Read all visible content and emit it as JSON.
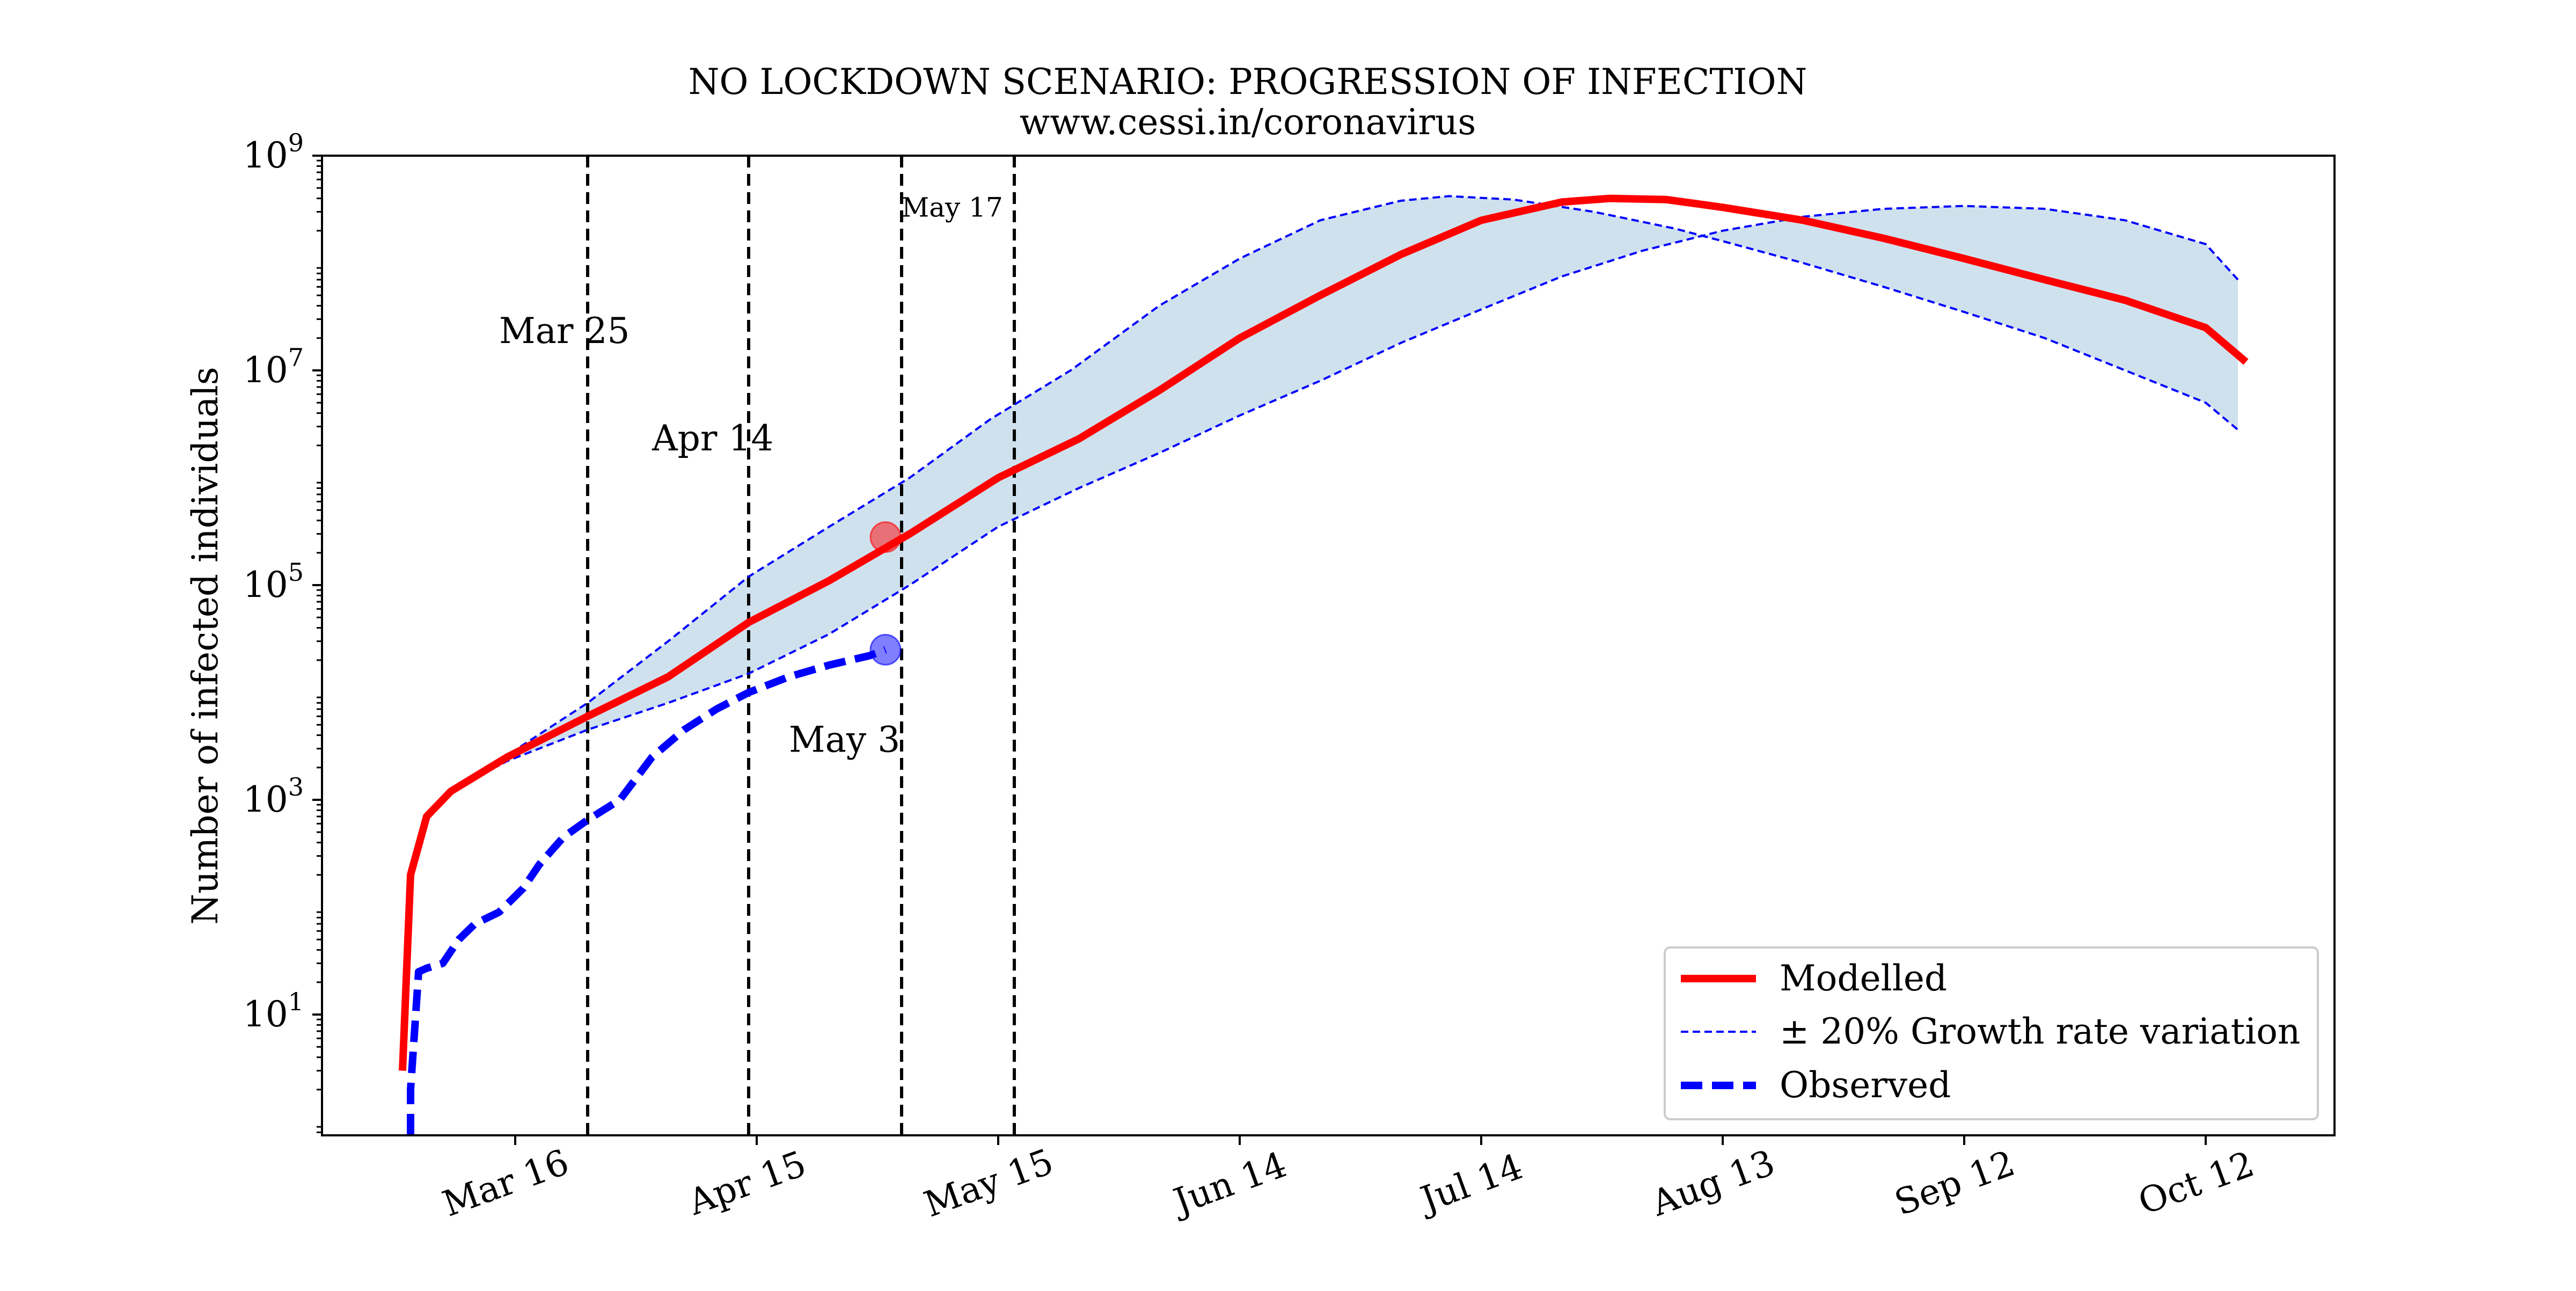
{
  "chart_data": {
    "type": "line",
    "title": "NO LOCKDOWN SCENARIO: PROGRESSION OF INFECTION",
    "subtitle": "www.cessi.in/coronavirus",
    "xlabel": "",
    "ylabel": "Number of infected individuals",
    "yscale": "log",
    "ylim": [
      0.75,
      1000000000
    ],
    "xlim": [
      "2020-02-21",
      "2020-10-28"
    ],
    "x_ticks": [
      "Mar 16",
      "Apr 15",
      "May 15",
      "Jun 14",
      "Jul 14",
      "Aug 13",
      "Sep 12",
      "Oct 12"
    ],
    "x_tick_dates": [
      "2020-03-16",
      "2020-04-15",
      "2020-05-15",
      "2020-06-14",
      "2020-07-14",
      "2020-08-13",
      "2020-09-12",
      "2020-10-12"
    ],
    "y_ticks": [
      {
        "value": 10,
        "base": "10",
        "exp": "1"
      },
      {
        "value": 1000,
        "base": "10",
        "exp": "3"
      },
      {
        "value": 100000,
        "base": "10",
        "exp": "5"
      },
      {
        "value": 10000000,
        "base": "10",
        "exp": "7"
      },
      {
        "value": 1000000000,
        "base": "10",
        "exp": "9"
      }
    ],
    "grid": false,
    "legend_position": "lower-right",
    "vertical_lines": [
      {
        "date": "2020-03-25",
        "label": "Mar 25",
        "label_date": "2020-03-14",
        "label_value": 18000000,
        "size": "normal"
      },
      {
        "date": "2020-04-14",
        "label": "Apr 14",
        "label_date": "2020-04-02",
        "label_value": 1800000,
        "size": "normal"
      },
      {
        "date": "2020-05-03",
        "label": "May 3",
        "label_date": "2020-04-19",
        "label_value": 2800,
        "size": "normal"
      },
      {
        "date": "2020-05-17",
        "label": "May 17",
        "label_date": "2020-05-03",
        "label_value": 270000000,
        "size": "small"
      }
    ],
    "series": [
      {
        "name": "Modelled",
        "color": "#ff0000",
        "style": "solid",
        "points": [
          [
            "2020-03-02",
            3
          ],
          [
            "2020-03-03",
            200
          ],
          [
            "2020-03-05",
            700
          ],
          [
            "2020-03-08",
            1200
          ],
          [
            "2020-03-15",
            2500
          ],
          [
            "2020-03-25",
            6000
          ],
          [
            "2020-04-04",
            14000
          ],
          [
            "2020-04-14",
            45000
          ],
          [
            "2020-04-24",
            110000
          ],
          [
            "2020-05-04",
            300000
          ],
          [
            "2020-05-15",
            1000000
          ],
          [
            "2020-05-25",
            2300000
          ],
          [
            "2020-06-04",
            6500000
          ],
          [
            "2020-06-14",
            20000000
          ],
          [
            "2020-06-24",
            50000000
          ],
          [
            "2020-07-04",
            120000000
          ],
          [
            "2020-07-14",
            250000000
          ],
          [
            "2020-07-24",
            370000000
          ],
          [
            "2020-07-30",
            400000000
          ],
          [
            "2020-08-06",
            390000000
          ],
          [
            "2020-08-13",
            330000000
          ],
          [
            "2020-08-23",
            250000000
          ],
          [
            "2020-09-02",
            170000000
          ],
          [
            "2020-09-12",
            110000000
          ],
          [
            "2020-09-22",
            70000000
          ],
          [
            "2020-10-02",
            45000000
          ],
          [
            "2020-10-12",
            25000000
          ],
          [
            "2020-10-17",
            12000000
          ]
        ]
      },
      {
        "name": "± 20% Growth rate variation",
        "color": "#0000ff",
        "style": "dashed-thin",
        "band_fill": "#d0e1ee",
        "upper": [
          [
            "2020-03-08",
            1200
          ],
          [
            "2020-03-15",
            2600
          ],
          [
            "2020-03-25",
            8000
          ],
          [
            "2020-04-04",
            30000
          ],
          [
            "2020-04-14",
            120000
          ],
          [
            "2020-04-24",
            350000
          ],
          [
            "2020-05-04",
            1000000
          ],
          [
            "2020-05-14",
            3500000
          ],
          [
            "2020-05-24",
            10000000
          ],
          [
            "2020-06-04",
            40000000
          ],
          [
            "2020-06-14",
            110000000
          ],
          [
            "2020-06-24",
            250000000
          ],
          [
            "2020-07-04",
            380000000
          ],
          [
            "2020-07-10",
            420000000
          ],
          [
            "2020-07-18",
            390000000
          ],
          [
            "2020-07-28",
            300000000
          ],
          [
            "2020-08-07",
            210000000
          ],
          [
            "2020-08-13",
            160000000
          ],
          [
            "2020-08-23",
            100000000
          ],
          [
            "2020-09-02",
            60000000
          ],
          [
            "2020-09-12",
            35000000
          ],
          [
            "2020-09-22",
            20000000
          ],
          [
            "2020-10-02",
            10000000
          ],
          [
            "2020-10-12",
            5000000
          ],
          [
            "2020-10-16",
            2800000
          ]
        ],
        "lower": [
          [
            "2020-03-08",
            1200
          ],
          [
            "2020-03-15",
            2300
          ],
          [
            "2020-03-25",
            4500
          ],
          [
            "2020-04-04",
            8000
          ],
          [
            "2020-04-14",
            15000
          ],
          [
            "2020-04-24",
            35000
          ],
          [
            "2020-05-04",
            100000
          ],
          [
            "2020-05-15",
            350000
          ],
          [
            "2020-05-25",
            800000
          ],
          [
            "2020-06-04",
            1700000
          ],
          [
            "2020-06-14",
            3800000
          ],
          [
            "2020-06-24",
            8000000
          ],
          [
            "2020-07-04",
            18000000
          ],
          [
            "2020-07-14",
            37000000
          ],
          [
            "2020-07-24",
            75000000
          ],
          [
            "2020-08-03",
            130000000
          ],
          [
            "2020-08-13",
            200000000
          ],
          [
            "2020-08-23",
            270000000
          ],
          [
            "2020-09-02",
            320000000
          ],
          [
            "2020-09-12",
            340000000
          ],
          [
            "2020-09-22",
            320000000
          ],
          [
            "2020-10-02",
            250000000
          ],
          [
            "2020-10-12",
            150000000
          ],
          [
            "2020-10-16",
            70000000
          ]
        ]
      },
      {
        "name": "Observed",
        "color": "#0000ff",
        "style": "dashed-thick",
        "points": [
          [
            "2020-03-03",
            0.75
          ],
          [
            "2020-03-03",
            2
          ],
          [
            "2020-03-04",
            25
          ],
          [
            "2020-03-05",
            27
          ],
          [
            "2020-03-07",
            30
          ],
          [
            "2020-03-09",
            50
          ],
          [
            "2020-03-11",
            70
          ],
          [
            "2020-03-14",
            90
          ],
          [
            "2020-03-17",
            150
          ],
          [
            "2020-03-19",
            250
          ],
          [
            "2020-03-22",
            450
          ],
          [
            "2020-03-25",
            650
          ],
          [
            "2020-03-29",
            1000
          ],
          [
            "2020-04-02",
            2500
          ],
          [
            "2020-04-06",
            4500
          ],
          [
            "2020-04-10",
            7000
          ],
          [
            "2020-04-14",
            10000
          ],
          [
            "2020-04-19",
            14000
          ],
          [
            "2020-04-24",
            18000
          ],
          [
            "2020-04-29",
            22000
          ],
          [
            "2020-05-01",
            25000
          ]
        ]
      }
    ],
    "markers": [
      {
        "series": "Modelled",
        "date": "2020-05-01",
        "value": 280000,
        "color": "#ff0000"
      },
      {
        "series": "Observed",
        "date": "2020-05-01",
        "value": 25000,
        "color": "#0000ff"
      }
    ]
  }
}
